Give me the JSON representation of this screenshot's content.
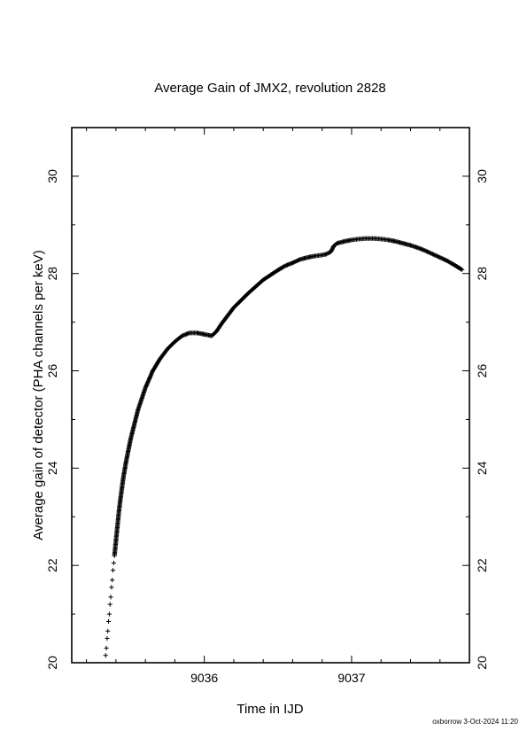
{
  "chart_data": {
    "type": "scatter",
    "title": "Average Gain of JMX2, revolution 2828",
    "xlabel": "Time in IJD",
    "ylabel": "Average gain of detector (PHA channels per keV)",
    "xlim": [
      9035.1,
      9037.8
    ],
    "ylim": [
      20,
      31
    ],
    "xticks": [
      9036,
      9037
    ],
    "xtick_labels": [
      "9036",
      "9037"
    ],
    "yticks": [
      20,
      22,
      24,
      26,
      28,
      30
    ],
    "ytick_labels": [
      "20",
      "22",
      "24",
      "26",
      "28",
      "30"
    ],
    "marker": "+",
    "grid": false,
    "series": [
      {
        "points": [
          [
            9035.33,
            20.15
          ],
          [
            9035.335,
            20.3
          ],
          [
            9035.34,
            20.5
          ],
          [
            9035.345,
            20.65
          ],
          [
            9035.35,
            20.85
          ],
          [
            9035.355,
            21.0
          ],
          [
            9035.36,
            21.2
          ],
          [
            9035.365,
            21.35
          ],
          [
            9035.37,
            21.55
          ],
          [
            9035.375,
            21.7
          ],
          [
            9035.38,
            21.9
          ],
          [
            9035.385,
            22.05
          ],
          [
            9035.39,
            22.2
          ],
          [
            9035.4,
            22.5
          ],
          [
            9035.41,
            22.8
          ],
          [
            9035.42,
            23.1
          ],
          [
            9035.43,
            23.35
          ],
          [
            9035.45,
            23.8
          ],
          [
            9035.47,
            24.15
          ],
          [
            9035.5,
            24.6
          ],
          [
            9035.55,
            25.2
          ],
          [
            9035.6,
            25.65
          ],
          [
            9035.65,
            26.0
          ],
          [
            9035.7,
            26.25
          ],
          [
            9035.75,
            26.45
          ],
          [
            9035.8,
            26.6
          ],
          [
            9035.85,
            26.72
          ],
          [
            9035.9,
            26.78
          ],
          [
            9035.95,
            26.78
          ],
          [
            9036.0,
            26.75
          ],
          [
            9036.05,
            26.72
          ],
          [
            9036.08,
            26.8
          ],
          [
            9036.12,
            26.98
          ],
          [
            9036.2,
            27.3
          ],
          [
            9036.3,
            27.6
          ],
          [
            9036.4,
            27.87
          ],
          [
            9036.5,
            28.07
          ],
          [
            9036.55,
            28.16
          ],
          [
            9036.6,
            28.22
          ],
          [
            9036.65,
            28.29
          ],
          [
            9036.7,
            28.33
          ],
          [
            9036.75,
            28.36
          ],
          [
            9036.8,
            28.38
          ],
          [
            9036.83,
            28.4
          ],
          [
            9036.86,
            28.45
          ],
          [
            9036.88,
            28.57
          ],
          [
            9036.9,
            28.62
          ],
          [
            9036.95,
            28.66
          ],
          [
            9037.0,
            28.69
          ],
          [
            9037.05,
            28.71
          ],
          [
            9037.1,
            28.72
          ],
          [
            9037.15,
            28.72
          ],
          [
            9037.2,
            28.71
          ],
          [
            9037.25,
            28.69
          ],
          [
            9037.3,
            28.66
          ],
          [
            9037.35,
            28.62
          ],
          [
            9037.4,
            28.58
          ],
          [
            9037.45,
            28.53
          ],
          [
            9037.5,
            28.47
          ],
          [
            9037.55,
            28.4
          ],
          [
            9037.6,
            28.33
          ],
          [
            9037.65,
            28.26
          ],
          [
            9037.7,
            28.17
          ],
          [
            9037.75,
            28.08
          ]
        ]
      }
    ]
  },
  "footer": "oxborrow  3-Oct-2024 11:20"
}
